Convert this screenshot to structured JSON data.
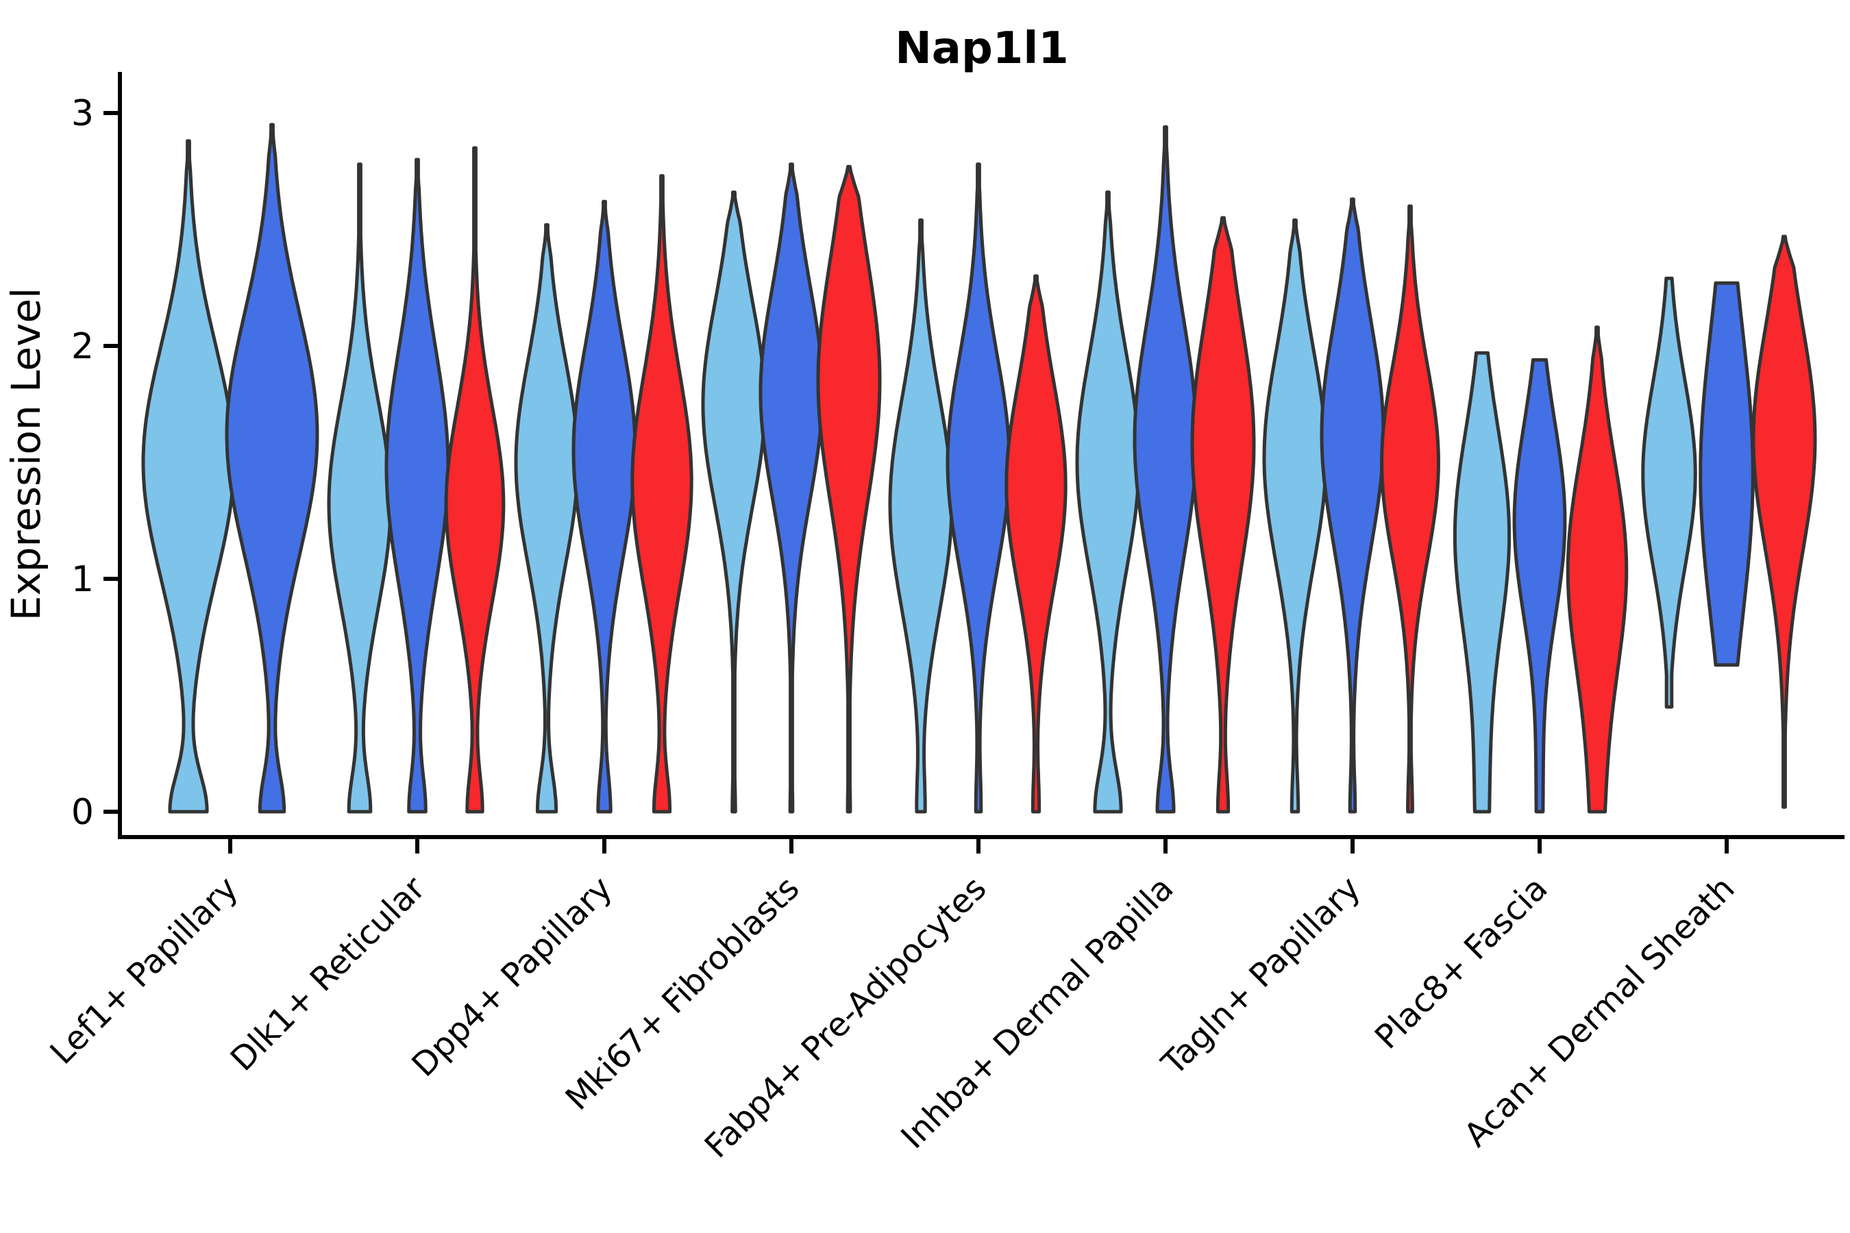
{
  "title": "Nap1l1",
  "axes": {
    "y_label": "Expression Level",
    "y_ticks": [
      "0",
      "1",
      "2",
      "3"
    ],
    "x_labels": [
      "Lef1+ Papillary",
      "Dlk1+ Reticular",
      "Dpp4+ Papillary",
      "Mki67+ Fibroblasts",
      "Fabp4+ Pre-Adipocytes",
      "Inhba+ Dermal Papilla",
      "Tagln+ Papillary",
      "Plac8+ Fascia",
      "Acan+ Dermal Sheath"
    ]
  },
  "colors": {
    "light_blue": "#7EC3EA",
    "blue": "#4470E5",
    "red": "#F8282C",
    "edge": "#333333",
    "axis": "#000000"
  },
  "chart_data": {
    "type": "violin",
    "title": "Nap1l1",
    "ylabel": "Expression Level",
    "ylim": [
      0,
      3
    ],
    "grid": false,
    "legend": "none",
    "categories": [
      "Lef1+ Papillary",
      "Dlk1+ Reticular",
      "Dpp4+ Papillary",
      "Mki67+ Fibroblasts",
      "Fabp4+ Pre-Adipocytes",
      "Inhba+ Dermal Papilla",
      "Tagln+ Papillary",
      "Plac8+ Fascia",
      "Acan+ Dermal Sheath"
    ],
    "series_colors": {
      "light_blue": "#7EC3EA",
      "blue": "#4470E5",
      "red": "#F8282C"
    },
    "violins": [
      {
        "category": 0,
        "series": "light_blue",
        "max": 2.88,
        "mode": 1.5,
        "sd": 0.5,
        "foot": 0.4,
        "foot_sd": 0.16,
        "bottom": 0,
        "blunt_top": false,
        "min_w": 0,
        "scale": 1.0
      },
      {
        "category": 0,
        "series": "blue",
        "max": 2.95,
        "mode": 1.62,
        "sd": 0.52,
        "foot": 0.26,
        "foot_sd": 0.16,
        "bottom": 0,
        "blunt_top": false,
        "min_w": 0,
        "scale": 1.0
      },
      {
        "category": 1,
        "series": "light_blue",
        "max": 2.78,
        "mode": 1.32,
        "sd": 0.44,
        "foot": 0.34,
        "foot_sd": 0.16,
        "bottom": 0,
        "blunt_top": false,
        "min_w": 0,
        "scale": 1.0
      },
      {
        "category": 1,
        "series": "blue",
        "max": 2.8,
        "mode": 1.48,
        "sd": 0.5,
        "foot": 0.26,
        "foot_sd": 0.16,
        "bottom": 0,
        "blunt_top": false,
        "min_w": 0,
        "scale": 1.0
      },
      {
        "category": 1,
        "series": "red",
        "max": 2.85,
        "mode": 1.32,
        "sd": 0.42,
        "foot": 0.26,
        "foot_sd": 0.16,
        "bottom": 0,
        "blunt_top": false,
        "min_w": 0,
        "scale": 0.93
      },
      {
        "category": 2,
        "series": "light_blue",
        "max": 2.52,
        "mode": 1.5,
        "sd": 0.44,
        "foot": 0.3,
        "foot_sd": 0.16,
        "bottom": 0,
        "blunt_top": false,
        "min_w": 0,
        "scale": 1.0
      },
      {
        "category": 2,
        "series": "blue",
        "max": 2.62,
        "mode": 1.55,
        "sd": 0.46,
        "foot": 0.2,
        "foot_sd": 0.16,
        "bottom": 0,
        "blunt_top": false,
        "min_w": 0,
        "scale": 1.0
      },
      {
        "category": 2,
        "series": "red",
        "max": 2.73,
        "mode": 1.42,
        "sd": 0.46,
        "foot": 0.26,
        "foot_sd": 0.16,
        "bottom": 0,
        "blunt_top": false,
        "min_w": 0,
        "scale": 0.96
      },
      {
        "category": 3,
        "series": "light_blue",
        "max": 2.66,
        "mode": 1.75,
        "sd": 0.44,
        "foot": 0.05,
        "foot_sd": 0.14,
        "bottom": 0,
        "blunt_top": false,
        "min_w": 0,
        "scale": 1.0
      },
      {
        "category": 3,
        "series": "blue",
        "max": 2.78,
        "mode": 1.8,
        "sd": 0.46,
        "foot": 0.04,
        "foot_sd": 0.14,
        "bottom": 0,
        "blunt_top": false,
        "min_w": 0,
        "scale": 1.0
      },
      {
        "category": 3,
        "series": "red",
        "max": 2.77,
        "mode": 1.85,
        "sd": 0.52,
        "foot": 0.04,
        "foot_sd": 0.14,
        "bottom": 0,
        "blunt_top": false,
        "min_w": 0,
        "scale": 1.0
      },
      {
        "category": 4,
        "series": "light_blue",
        "max": 2.54,
        "mode": 1.32,
        "sd": 0.46,
        "foot": 0.12,
        "foot_sd": 0.16,
        "bottom": 0,
        "blunt_top": false,
        "min_w": 0,
        "scale": 1.0
      },
      {
        "category": 4,
        "series": "blue",
        "max": 2.78,
        "mode": 1.5,
        "sd": 0.46,
        "foot": 0.08,
        "foot_sd": 0.16,
        "bottom": 0,
        "blunt_top": false,
        "min_w": 0,
        "scale": 1.0
      },
      {
        "category": 4,
        "series": "red",
        "max": 2.3,
        "mode": 1.4,
        "sd": 0.44,
        "foot": 0.1,
        "foot_sd": 0.16,
        "bottom": 0,
        "blunt_top": false,
        "min_w": 0,
        "scale": 0.96
      },
      {
        "category": 5,
        "series": "light_blue",
        "max": 2.66,
        "mode": 1.5,
        "sd": 0.46,
        "foot": 0.42,
        "foot_sd": 0.18,
        "bottom": 0,
        "blunt_top": false,
        "min_w": 0,
        "scale": 1.0
      },
      {
        "category": 5,
        "series": "blue",
        "max": 2.94,
        "mode": 1.6,
        "sd": 0.5,
        "foot": 0.26,
        "foot_sd": 0.16,
        "bottom": 0,
        "blunt_top": false,
        "min_w": 0,
        "scale": 1.0
      },
      {
        "category": 5,
        "series": "red",
        "max": 2.55,
        "mode": 1.58,
        "sd": 0.52,
        "foot": 0.16,
        "foot_sd": 0.16,
        "bottom": 0,
        "blunt_top": false,
        "min_w": 0,
        "scale": 1.0
      },
      {
        "category": 6,
        "series": "light_blue",
        "max": 2.54,
        "mode": 1.52,
        "sd": 0.46,
        "foot": 0.1,
        "foot_sd": 0.16,
        "bottom": 0,
        "blunt_top": false,
        "min_w": 0,
        "scale": 1.0
      },
      {
        "category": 6,
        "series": "blue",
        "max": 2.63,
        "mode": 1.62,
        "sd": 0.48,
        "foot": 0.08,
        "foot_sd": 0.16,
        "bottom": 0,
        "blunt_top": false,
        "min_w": 0,
        "scale": 1.0
      },
      {
        "category": 6,
        "series": "red",
        "max": 2.6,
        "mode": 1.5,
        "sd": 0.42,
        "foot": 0.08,
        "foot_sd": 0.16,
        "bottom": 0,
        "blunt_top": false,
        "min_w": 0,
        "scale": 0.92
      },
      {
        "category": 7,
        "series": "light_blue",
        "max": 1.97,
        "mode": 1.2,
        "sd": 0.44,
        "foot": 0.25,
        "foot_sd": 0.5,
        "bottom": 0,
        "blunt_top": true,
        "min_w": 0,
        "scale": 0.88
      },
      {
        "category": 7,
        "series": "blue",
        "max": 1.94,
        "mode": 1.25,
        "sd": 0.42,
        "foot": 0.12,
        "foot_sd": 0.35,
        "bottom": 0,
        "blunt_top": true,
        "min_w": 0,
        "scale": 0.82
      },
      {
        "category": 7,
        "series": "red",
        "max": 2.08,
        "mode": 1.05,
        "sd": 0.46,
        "foot": 0.2,
        "foot_sd": 0.45,
        "bottom": 0,
        "blunt_top": false,
        "min_w": 0,
        "scale": 0.95
      },
      {
        "category": 8,
        "series": "light_blue",
        "max": 2.29,
        "mode": 1.45,
        "sd": 0.4,
        "foot": 0,
        "foot_sd": 0.16,
        "bottom": 0.45,
        "blunt_top": true,
        "min_w": 0.1,
        "scale": 0.85
      },
      {
        "category": 8,
        "series": "blue",
        "max": 2.27,
        "mode": 1.45,
        "sd": 0.62,
        "foot": 0,
        "foot_sd": 0.16,
        "bottom": 0.63,
        "blunt_top": true,
        "min_w": 0,
        "scale": 0.85
      },
      {
        "category": 8,
        "series": "red",
        "max": 2.47,
        "mode": 1.6,
        "sd": 0.48,
        "foot": 0,
        "foot_sd": 0.16,
        "bottom": 0.02,
        "blunt_top": false,
        "min_w": 0.02,
        "scale": 1.0
      }
    ]
  }
}
